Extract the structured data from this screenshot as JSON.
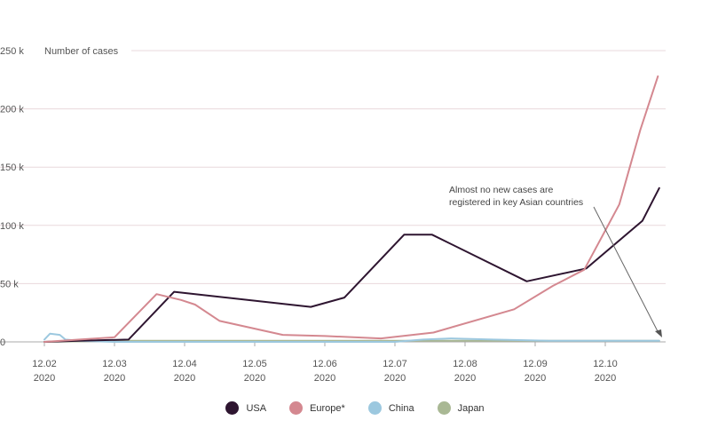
{
  "chart_data": {
    "type": "line",
    "ylabel": "Number of cases",
    "ylim": [
      0,
      250
    ],
    "y_ticks": [
      {
        "value": 0,
        "label": "0"
      },
      {
        "value": 50,
        "label": "50 k"
      },
      {
        "value": 100,
        "label": "100 k"
      },
      {
        "value": 150,
        "label": "150 k"
      },
      {
        "value": 200,
        "label": "200 k"
      },
      {
        "value": 250,
        "label": "250 k"
      }
    ],
    "xlim": [
      0,
      8.8
    ],
    "x_ticks": [
      {
        "value": 0,
        "label": "12.02",
        "year": "2020"
      },
      {
        "value": 1,
        "label": "12.03",
        "year": "2020"
      },
      {
        "value": 2,
        "label": "12.04",
        "year": "2020"
      },
      {
        "value": 3,
        "label": "12.05",
        "year": "2020"
      },
      {
        "value": 4,
        "label": "12.06",
        "year": "2020"
      },
      {
        "value": 5,
        "label": "12.07",
        "year": "2020"
      },
      {
        "value": 6,
        "label": "12.08",
        "year": "2020"
      },
      {
        "value": 7,
        "label": "12.09",
        "year": "2020"
      },
      {
        "value": 8,
        "label": "12.10",
        "year": "2020"
      }
    ],
    "series": [
      {
        "name": "USA",
        "color": "#2e1530",
        "points": [
          [
            0,
            0
          ],
          [
            0.5,
            1
          ],
          [
            1.2,
            2
          ],
          [
            1.85,
            43
          ],
          [
            3.8,
            30
          ],
          [
            4.28,
            38
          ],
          [
            5.13,
            92
          ],
          [
            5.53,
            92
          ],
          [
            6.88,
            52
          ],
          [
            7.73,
            63
          ],
          [
            8.53,
            104
          ],
          [
            8.77,
            132
          ]
        ]
      },
      {
        "name": "Europe*",
        "color": "#d48890",
        "points": [
          [
            0,
            0
          ],
          [
            0.5,
            2
          ],
          [
            1.0,
            4
          ],
          [
            1.6,
            41
          ],
          [
            1.95,
            36
          ],
          [
            2.15,
            32
          ],
          [
            2.5,
            18
          ],
          [
            3.4,
            6
          ],
          [
            4.0,
            5
          ],
          [
            4.8,
            3
          ],
          [
            5.55,
            8
          ],
          [
            6.7,
            28
          ],
          [
            7.25,
            48
          ],
          [
            7.7,
            62
          ],
          [
            8.2,
            118
          ],
          [
            8.5,
            182
          ],
          [
            8.75,
            228
          ]
        ]
      },
      {
        "name": "China",
        "color": "#9cc8df",
        "points": [
          [
            0,
            2
          ],
          [
            0.08,
            7
          ],
          [
            0.22,
            6
          ],
          [
            0.3,
            2
          ],
          [
            0.5,
            1
          ],
          [
            1.0,
            0
          ],
          [
            5.0,
            0
          ],
          [
            5.4,
            2
          ],
          [
            5.8,
            3
          ],
          [
            6.4,
            2
          ],
          [
            7.2,
            1
          ],
          [
            8.77,
            1
          ]
        ]
      },
      {
        "name": "Japan",
        "color": "#a9b894",
        "points": [
          [
            0,
            0
          ],
          [
            1.0,
            1
          ],
          [
            2.0,
            1
          ],
          [
            3.0,
            1
          ],
          [
            4.0,
            1
          ],
          [
            5.0,
            1
          ],
          [
            6.0,
            1
          ],
          [
            7.0,
            1
          ],
          [
            8.0,
            1
          ],
          [
            8.77,
            1
          ]
        ]
      }
    ],
    "annotation": {
      "lines": [
        "Almost no new cases are",
        "registered in key Asian countries"
      ]
    }
  }
}
